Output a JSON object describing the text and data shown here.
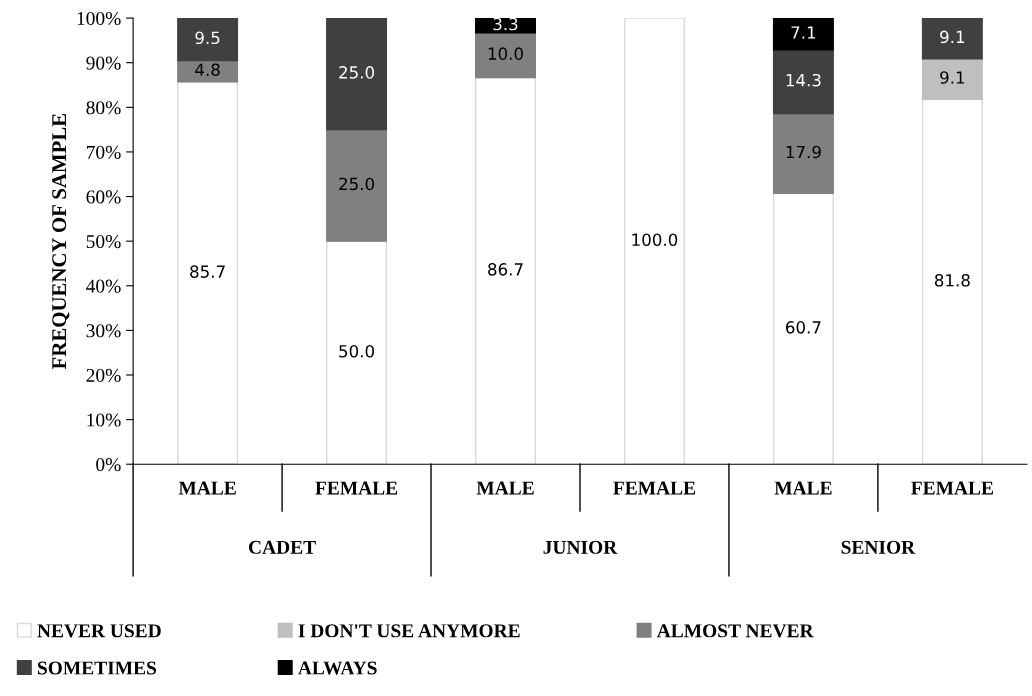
{
  "chart_data": {
    "type": "bar",
    "stacked": true,
    "ylabel": "FREQUENCY OF SAMPLE",
    "categories": [
      "MALE",
      "FEMALE",
      "MALE",
      "FEMALE",
      "MALE",
      "FEMALE"
    ],
    "annotations": [
      "CADET",
      "JUNIOR",
      "SENIOR"
    ],
    "series": [
      {
        "name": "NEVER USED",
        "color": "#ffffff",
        "values": [
          85.7,
          50.0,
          86.7,
          100.0,
          60.7,
          81.8
        ],
        "value_labels": [
          "85.7",
          "50.0",
          "86.7",
          "100.0",
          "60.7",
          "81.8"
        ]
      },
      {
        "name": "I DON'T USE ANYMORE",
        "color": "#bfbfbf",
        "values": [
          null,
          null,
          null,
          null,
          null,
          9.1
        ],
        "value_labels": [
          null,
          null,
          null,
          null,
          null,
          "9.1"
        ]
      },
      {
        "name": "ALMOST NEVER",
        "color": "#808080",
        "values": [
          4.8,
          25.0,
          10.0,
          null,
          17.9,
          null
        ],
        "value_labels": [
          "4.8",
          "25.0",
          "10.0",
          null,
          "17.9",
          null
        ]
      },
      {
        "name": "SOMETIMES",
        "color": "#404040",
        "values": [
          9.5,
          25.0,
          null,
          null,
          14.3,
          9.1
        ],
        "value_labels": [
          "9.5",
          "25.0",
          null,
          null,
          "14.3",
          "9.1"
        ]
      },
      {
        "name": "ALWAYS",
        "color": "#000000",
        "values": [
          null,
          null,
          3.3,
          null,
          7.1,
          null
        ],
        "value_labels": [
          null,
          null,
          "3.3",
          null,
          "7.1",
          null
        ]
      }
    ],
    "ylim": [
      0,
      100
    ],
    "yticks": [
      {
        "value": 0,
        "label": "0%"
      },
      {
        "value": 10,
        "label": "10%"
      },
      {
        "value": 20,
        "label": "20%"
      },
      {
        "value": 30,
        "label": "30%"
      },
      {
        "value": 40,
        "label": "40%"
      },
      {
        "value": 50,
        "label": "50%"
      },
      {
        "value": 60,
        "label": "60%"
      },
      {
        "value": 70,
        "label": "70%"
      },
      {
        "value": 80,
        "label": "80%"
      },
      {
        "value": 90,
        "label": "90%"
      },
      {
        "value": 100,
        "label": "100%"
      }
    ],
    "grid": false,
    "legend": "bottom"
  }
}
